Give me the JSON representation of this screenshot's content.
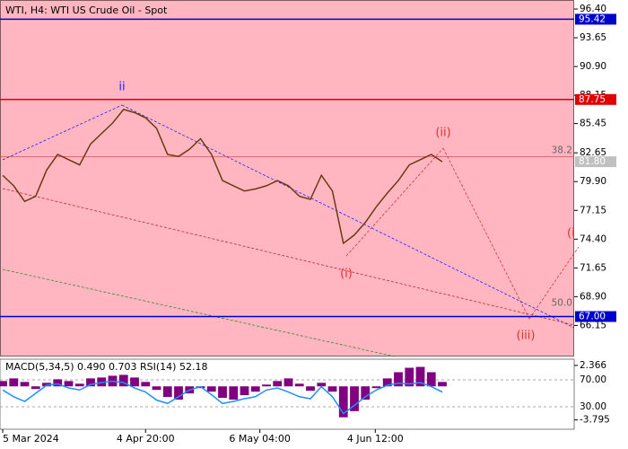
{
  "chart_data": [
    {
      "type": "line",
      "title": "WTI, H4:  WTI US Crude Oil - Spot",
      "x": [
        0,
        1,
        2,
        3,
        4,
        5,
        6,
        7,
        8,
        9,
        10,
        11,
        12,
        13,
        14,
        15,
        16,
        17,
        18,
        19,
        20,
        21,
        22,
        23,
        24,
        25,
        26,
        27,
        28,
        29,
        30,
        31,
        32,
        33,
        34,
        35,
        36,
        37,
        38,
        39,
        40
      ],
      "values": [
        80.5,
        79.5,
        78,
        78.5,
        81,
        82.5,
        82,
        81.5,
        83.5,
        84.5,
        85.5,
        86.8,
        86.5,
        86,
        85,
        82.5,
        82.3,
        83,
        84,
        82.5,
        80,
        79.5,
        79,
        79.2,
        79.5,
        80,
        79.5,
        78.5,
        78.2,
        80.5,
        79,
        74,
        74.8,
        76,
        77.5,
        78.8,
        80,
        81.5,
        82,
        82.5,
        81.8
      ],
      "color": "#6b3a12",
      "xlim": [
        0,
        52
      ],
      "ylim": [
        63.18,
        97.26
      ],
      "xticks": [
        {
          "value": 0,
          "label": "5 Mar 2024"
        },
        {
          "value": 13,
          "label": "4 Apr 20:00"
        },
        {
          "value": 23.4,
          "label": "6 May 04:00"
        },
        {
          "value": 33.9,
          "label": "4 Jun 12:00"
        }
      ],
      "yticks": [
        {
          "value": 96.4,
          "label": "96.40"
        },
        93.65,
        {
          "value": 90.9,
          "label": "90.90"
        },
        88.15,
        85.45,
        82.65,
        {
          "value": 79.9,
          "label": "79.90"
        },
        77.15,
        {
          "value": 74.4,
          "label": "74.40"
        },
        71.65,
        {
          "value": 68.9,
          "label": "68.90"
        },
        66.15
      ],
      "levels": [
        {
          "value": 95.42,
          "label": "95.42",
          "color": "#0000cd"
        },
        {
          "value": 87.75,
          "label": "87.75",
          "color": "#e00000"
        },
        {
          "value": 67,
          "label": "67.00",
          "color": "#0000cd"
        }
      ],
      "last_price": {
        "value": 81.8,
        "label": "81.80"
      },
      "fib": [
        {
          "value": 82.3,
          "label": "38.2"
        },
        {
          "value": 67.7,
          "label": "50.0"
        }
      ],
      "waves": [
        "ii",
        "(ii)",
        "(i)",
        "(iii)",
        "(i"
      ]
    },
    {
      "type": "macd",
      "title": "MACD(5,34,5) 0.490 0.703 RSI(14) 52.18",
      "series": [
        {
          "name": "MACD",
          "color": "#800080",
          "values": [
            0.6,
            0.9,
            0.5,
            -0.3,
            0.4,
            0.8,
            0.6,
            0.3,
            0.9,
            1.0,
            1.2,
            1.3,
            1.0,
            0.5,
            -0.4,
            -1.2,
            -1.5,
            -0.8,
            -0.2,
            -0.6,
            -1.3,
            -1.5,
            -1.0,
            -0.6,
            0.2,
            0.6,
            0.9,
            0.3,
            -0.5,
            0.4,
            -0.6,
            -3.5,
            -2.8,
            -1.5,
            -0.2,
            0.9,
            1.6,
            2.1,
            2.2,
            1.6,
            0.5
          ]
        },
        {
          "name": "RSI(14)",
          "color": "#1e90ff",
          "axis": "y2",
          "values": [
            55,
            45,
            38,
            50,
            62,
            64,
            58,
            55,
            63,
            66,
            68,
            66,
            58,
            52,
            40,
            35,
            45,
            55,
            60,
            48,
            35,
            38,
            42,
            45,
            55,
            58,
            52,
            45,
            42,
            60,
            45,
            20,
            32,
            45,
            55,
            62,
            65,
            64,
            66,
            60,
            52
          ]
        }
      ],
      "ylim": [
        -4.85,
        3.07
      ],
      "yticks": [
        2.366,
        -3.795
      ],
      "y2lim": [
        -3.3,
        100.7
      ],
      "y2ticks": [
        {
          "value": 70,
          "label": "70.00"
        },
        {
          "value": 30,
          "label": "30.00"
        }
      ]
    }
  ]
}
